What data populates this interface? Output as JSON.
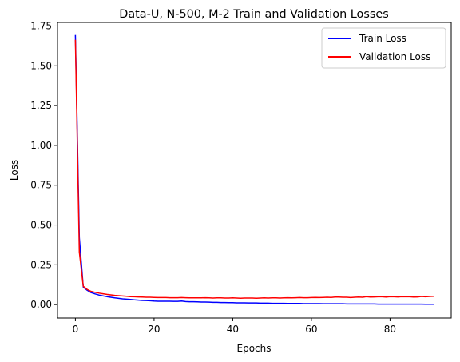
{
  "chart_data": {
    "type": "line",
    "title": "Data-U, N-500, M-2 Train and Validation Losses",
    "xlabel": "Epochs",
    "ylabel": "Loss",
    "xlim": [
      -4.55,
      95.55
    ],
    "ylim": [
      -0.0845,
      1.7725
    ],
    "xticks": [
      0,
      20,
      40,
      60,
      80
    ],
    "xtick_labels": [
      "0",
      "20",
      "40",
      "60",
      "80"
    ],
    "yticks": [
      0.0,
      0.25,
      0.5,
      0.75,
      1.0,
      1.25,
      1.5,
      1.75
    ],
    "ytick_labels": [
      "0.00",
      "0.25",
      "0.50",
      "0.75",
      "1.00",
      "1.25",
      "1.50",
      "1.75"
    ],
    "grid": false,
    "legend_position": "upper right",
    "series": [
      {
        "name": "Train Loss",
        "color": "#0000ff",
        "x": [
          0,
          1,
          2,
          3,
          4,
          5,
          6,
          7,
          8,
          9,
          10,
          11,
          12,
          13,
          14,
          15,
          16,
          17,
          18,
          19,
          20,
          21,
          22,
          23,
          24,
          25,
          26,
          27,
          28,
          29,
          30,
          31,
          32,
          33,
          34,
          35,
          36,
          37,
          38,
          39,
          40,
          41,
          42,
          43,
          44,
          45,
          46,
          47,
          48,
          49,
          50,
          51,
          52,
          53,
          54,
          55,
          56,
          57,
          58,
          59,
          60,
          61,
          62,
          63,
          64,
          65,
          66,
          67,
          68,
          69,
          70,
          71,
          72,
          73,
          74,
          75,
          76,
          77,
          78,
          79,
          80,
          81,
          82,
          83,
          84,
          85,
          86,
          87,
          88,
          89,
          90,
          91
        ],
        "values": [
          1.69,
          0.42,
          0.11,
          0.09,
          0.075,
          0.067,
          0.06,
          0.055,
          0.05,
          0.046,
          0.042,
          0.039,
          0.036,
          0.034,
          0.032,
          0.03,
          0.028,
          0.026,
          0.025,
          0.024,
          0.022,
          0.021,
          0.021,
          0.021,
          0.021,
          0.02,
          0.02,
          0.022,
          0.019,
          0.018,
          0.018,
          0.017,
          0.016,
          0.016,
          0.015,
          0.014,
          0.014,
          0.013,
          0.013,
          0.012,
          0.012,
          0.011,
          0.011,
          0.011,
          0.01,
          0.01,
          0.01,
          0.009,
          0.009,
          0.009,
          0.008,
          0.008,
          0.008,
          0.008,
          0.007,
          0.007,
          0.007,
          0.007,
          0.006,
          0.006,
          0.006,
          0.006,
          0.006,
          0.005,
          0.005,
          0.005,
          0.005,
          0.005,
          0.005,
          0.004,
          0.004,
          0.004,
          0.004,
          0.004,
          0.004,
          0.004,
          0.004,
          0.003,
          0.003,
          0.003,
          0.003,
          0.003,
          0.003,
          0.003,
          0.003,
          0.003,
          0.003,
          0.003,
          0.003,
          0.002,
          0.002,
          0.002
        ]
      },
      {
        "name": "Validation Loss",
        "color": "#ff0000",
        "x": [
          0,
          1,
          2,
          3,
          4,
          5,
          6,
          7,
          8,
          9,
          10,
          11,
          12,
          13,
          14,
          15,
          16,
          17,
          18,
          19,
          20,
          21,
          22,
          23,
          24,
          25,
          26,
          27,
          28,
          29,
          30,
          31,
          32,
          33,
          34,
          35,
          36,
          37,
          38,
          39,
          40,
          41,
          42,
          43,
          44,
          45,
          46,
          47,
          48,
          49,
          50,
          51,
          52,
          53,
          54,
          55,
          56,
          57,
          58,
          59,
          60,
          61,
          62,
          63,
          64,
          65,
          66,
          67,
          68,
          69,
          70,
          71,
          72,
          73,
          74,
          75,
          76,
          77,
          78,
          79,
          80,
          81,
          82,
          83,
          84,
          85,
          86,
          87,
          88,
          89,
          90,
          91
        ],
        "values": [
          1.66,
          0.33,
          0.115,
          0.095,
          0.083,
          0.077,
          0.072,
          0.068,
          0.064,
          0.061,
          0.058,
          0.056,
          0.054,
          0.052,
          0.05,
          0.049,
          0.048,
          0.047,
          0.046,
          0.046,
          0.045,
          0.044,
          0.044,
          0.044,
          0.043,
          0.043,
          0.043,
          0.044,
          0.043,
          0.042,
          0.042,
          0.042,
          0.042,
          0.043,
          0.042,
          0.041,
          0.042,
          0.042,
          0.041,
          0.041,
          0.042,
          0.041,
          0.04,
          0.041,
          0.041,
          0.041,
          0.04,
          0.041,
          0.042,
          0.041,
          0.042,
          0.042,
          0.041,
          0.042,
          0.043,
          0.042,
          0.043,
          0.044,
          0.043,
          0.043,
          0.044,
          0.045,
          0.044,
          0.045,
          0.046,
          0.045,
          0.047,
          0.047,
          0.046,
          0.046,
          0.044,
          0.046,
          0.047,
          0.046,
          0.05,
          0.047,
          0.048,
          0.049,
          0.049,
          0.047,
          0.05,
          0.049,
          0.048,
          0.05,
          0.049,
          0.049,
          0.047,
          0.048,
          0.051,
          0.049,
          0.051,
          0.052
        ]
      }
    ]
  }
}
